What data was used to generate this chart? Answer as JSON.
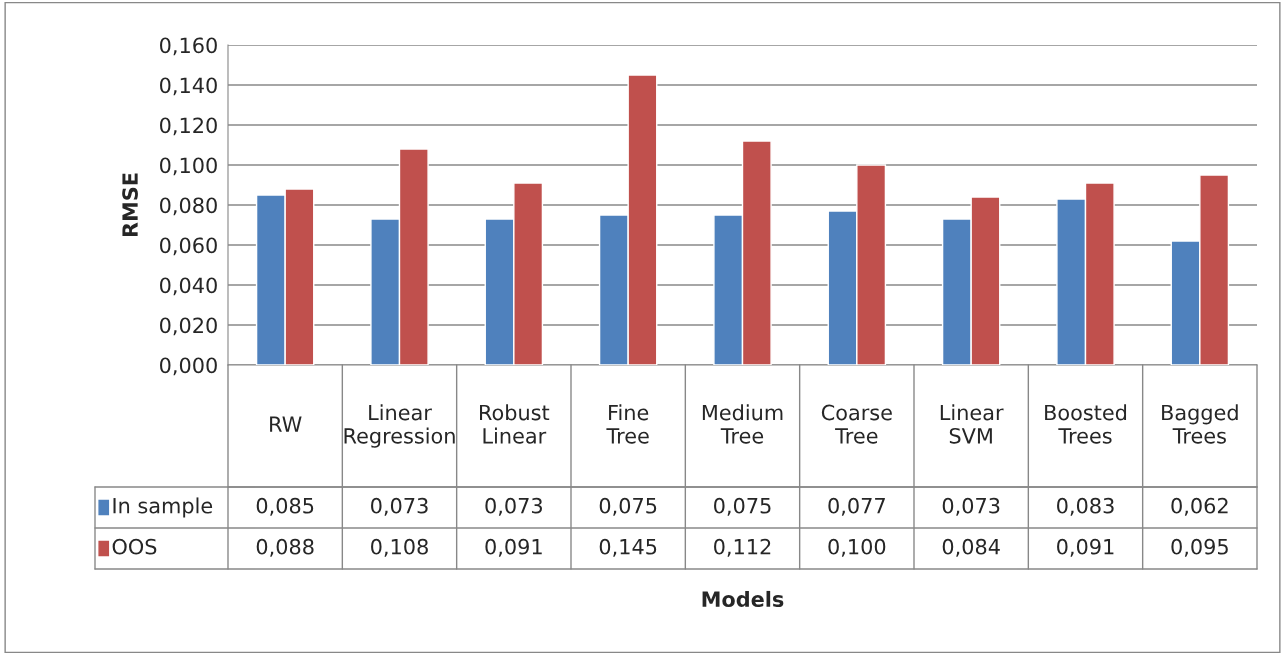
{
  "chart_data": {
    "type": "bar",
    "annotations": [
      "Models"
    ],
    "ylabel": "RMSE",
    "categories": [
      "RW",
      "Linear Regression",
      "Robust Linear",
      "Fine Tree",
      "Medium Tree",
      "Coarse Tree",
      "Linear SVM",
      "Boosted Trees",
      "Bagged Trees"
    ],
    "series": [
      {
        "name": "In sample",
        "color": "#4f81bd",
        "values": [
          0.085,
          0.073,
          0.073,
          0.075,
          0.075,
          0.077,
          0.073,
          0.083,
          0.062
        ],
        "value_labels": [
          "0,085",
          "0,073",
          "0,073",
          "0,075",
          "0,075",
          "0,077",
          "0,073",
          "0,083",
          "0,062"
        ]
      },
      {
        "name": "OOS",
        "color": "#c0504d",
        "values": [
          0.088,
          0.108,
          0.091,
          0.145,
          0.112,
          0.1,
          0.084,
          0.091,
          0.095
        ],
        "value_labels": [
          "0,088",
          "0,108",
          "0,091",
          "0,145",
          "0,112",
          "0,100",
          "0,084",
          "0,091",
          "0,095"
        ]
      }
    ],
    "ylim": [
      0,
      0.16
    ],
    "yticks": [
      {
        "value": 0,
        "label": "0,000"
      },
      {
        "value": 0.02,
        "label": "0,020"
      },
      {
        "value": 0.04,
        "label": "0,040"
      },
      {
        "value": 0.06,
        "label": "0,060"
      },
      {
        "value": 0.08,
        "label": "0,080"
      },
      {
        "value": 0.1,
        "label": "0,100"
      },
      {
        "value": 0.12,
        "label": "0,120"
      },
      {
        "value": 0.14,
        "label": "0,140"
      },
      {
        "value": 0.16,
        "label": "0,160"
      }
    ],
    "grid": "y",
    "legend": "bottom left"
  }
}
